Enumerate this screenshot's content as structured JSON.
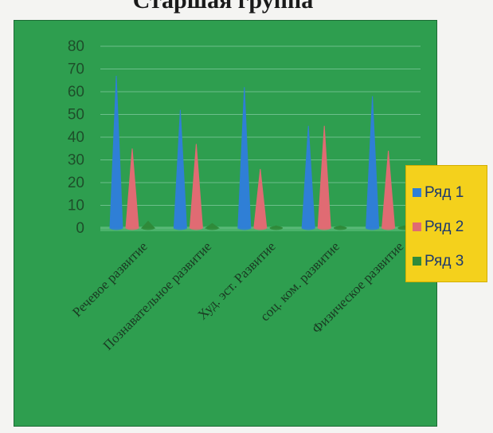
{
  "page": {
    "title": "Старшая группа"
  },
  "chart_data": {
    "type": "bar",
    "categories": [
      "Речевое развитие",
      "Познавательное развитие",
      "Худ. эст. Развитие",
      "соц. ком. развитие",
      "Физическое развитие"
    ],
    "series": [
      {
        "name": "Ряд 1",
        "color": "#2f7fd6",
        "values": [
          67,
          52,
          62,
          45,
          58
        ]
      },
      {
        "name": "Ряд 2",
        "color": "#e06b73",
        "values": [
          35,
          37,
          26,
          45,
          34
        ]
      },
      {
        "name": "Ряд 3",
        "color": "#2f8a3a",
        "values": [
          3,
          2,
          1,
          1,
          1
        ]
      }
    ],
    "ylim": [
      0,
      80
    ],
    "yticks": [
      0,
      10,
      20,
      30,
      40,
      50,
      60,
      70,
      80
    ],
    "grid": true,
    "legend_position": "right",
    "bar_shape": "cone"
  }
}
